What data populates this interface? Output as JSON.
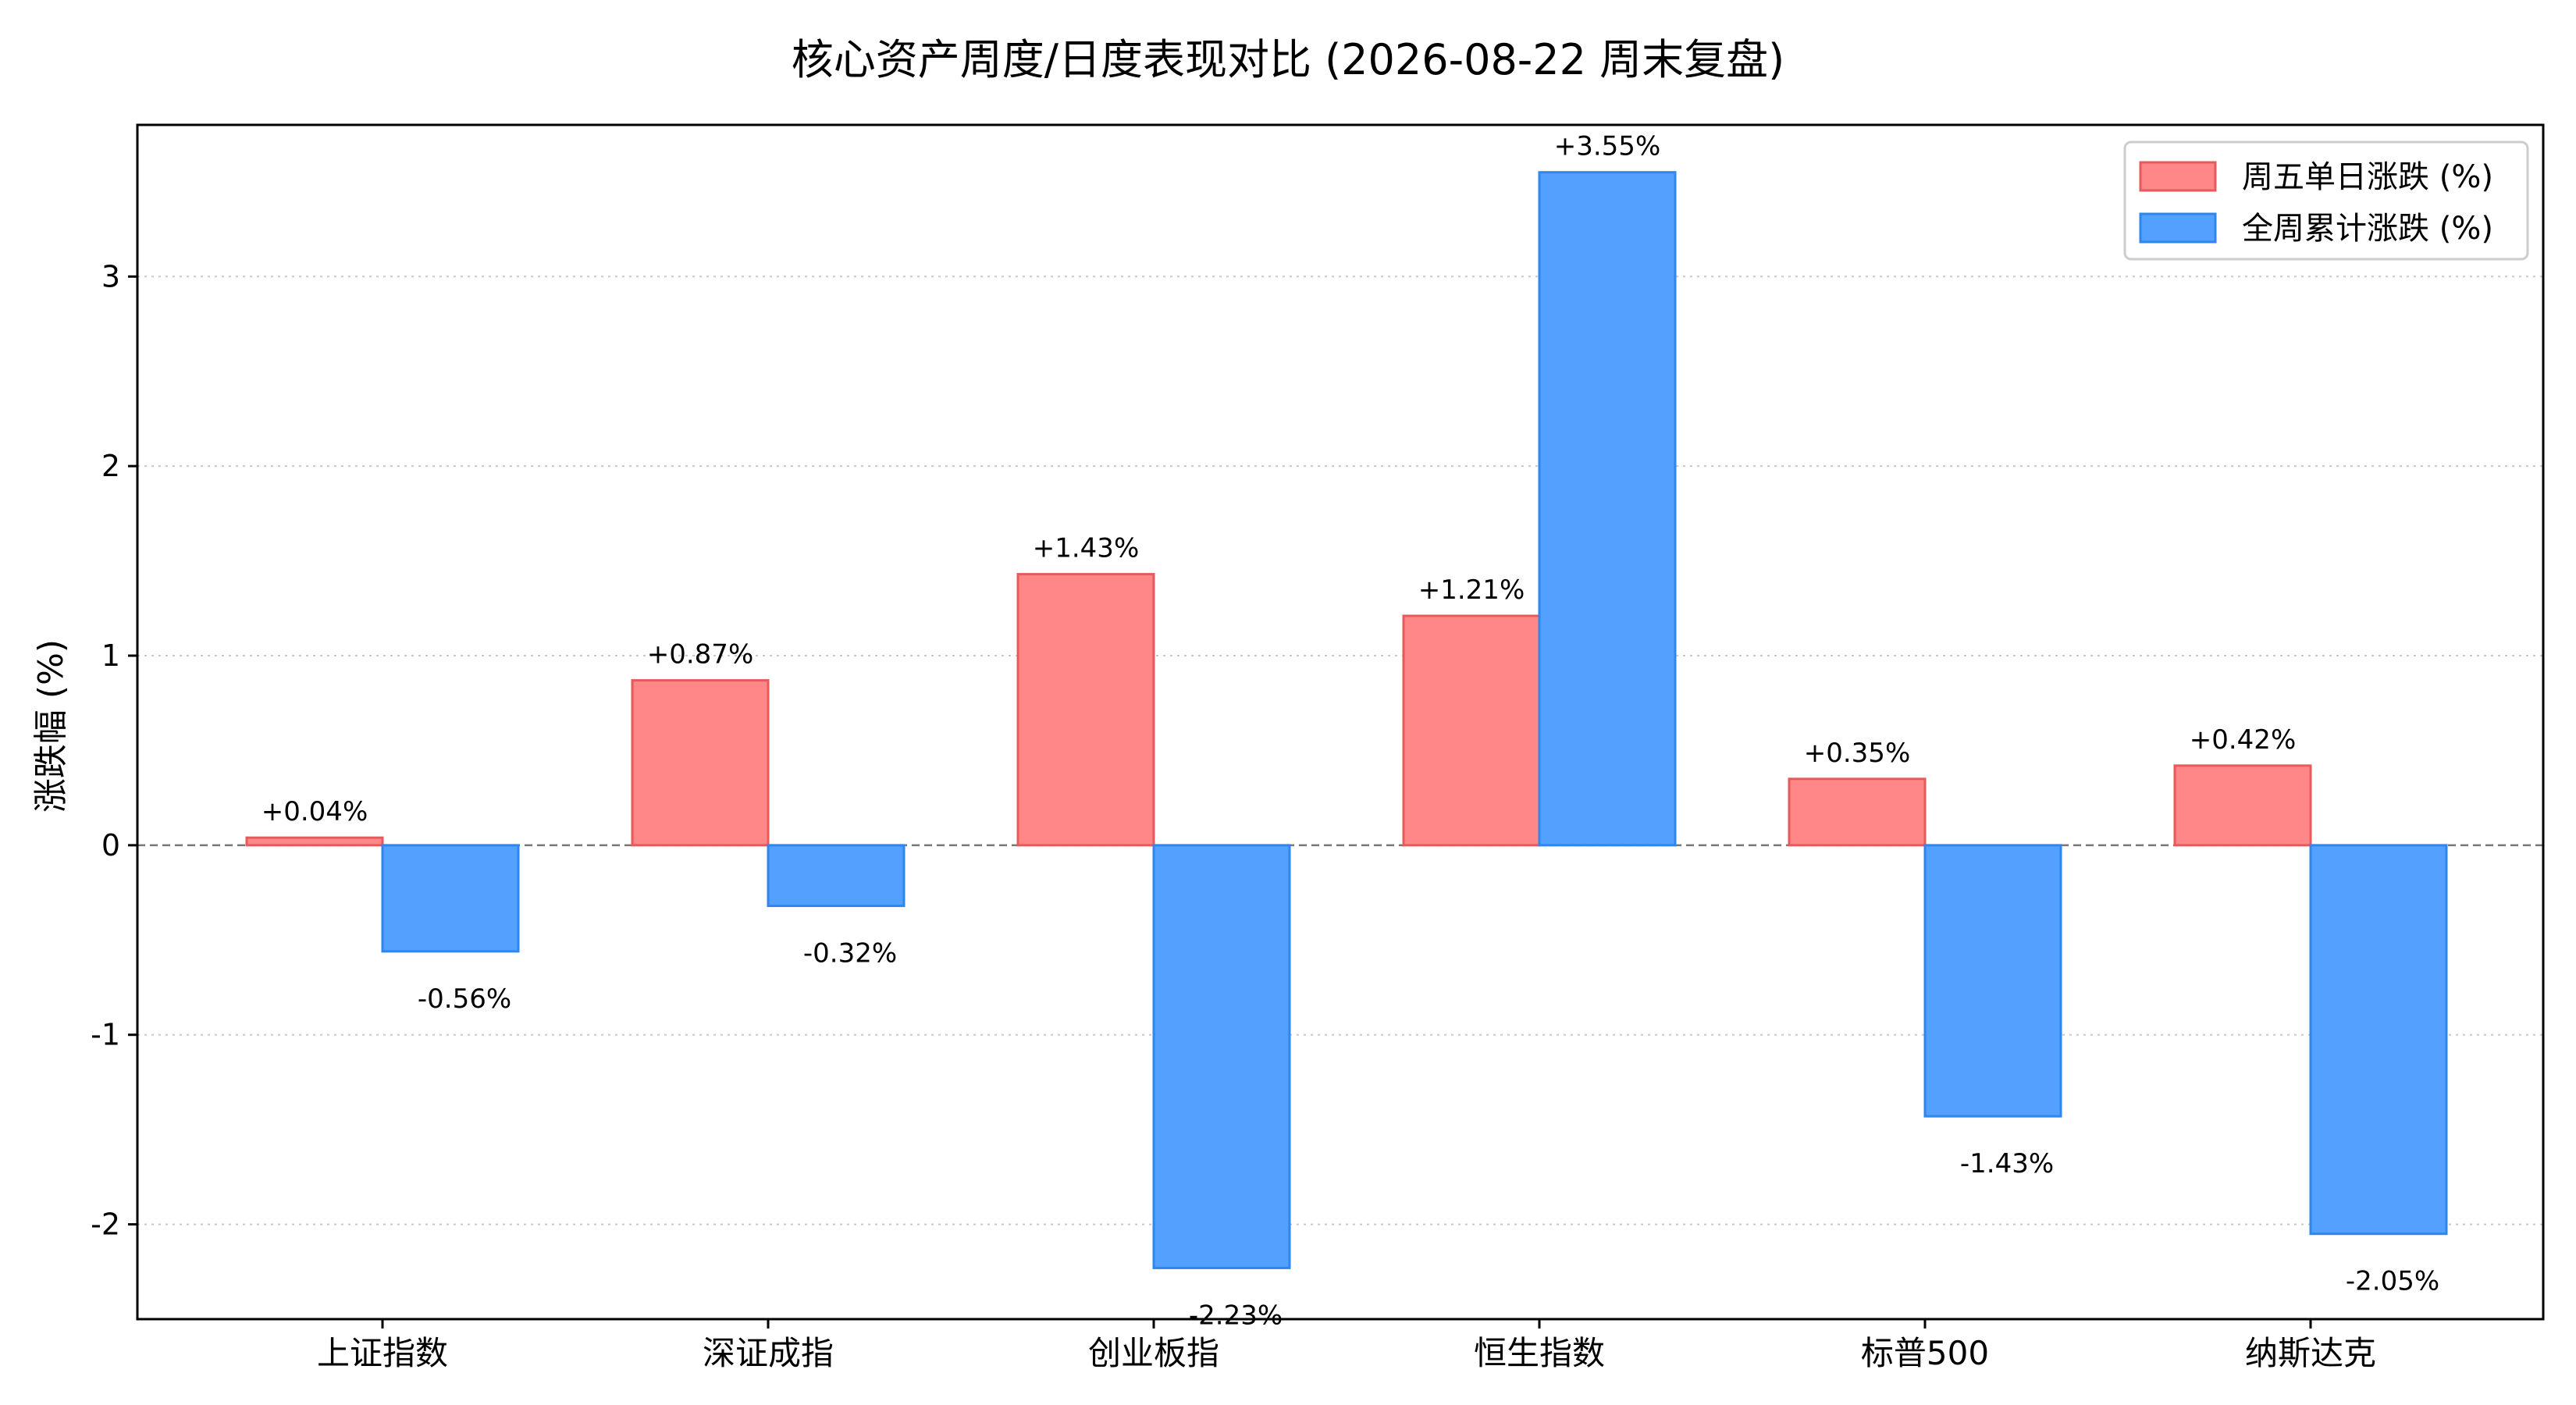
{
  "chart_data": {
    "type": "bar",
    "title": "核心资产周度/日度表现对比 (2026-08-22 周末复盘)",
    "xlabel": "",
    "ylabel": "涨跌幅 (%)",
    "ylim": [
      -2.5,
      3.8
    ],
    "yticks": [
      -2,
      -1,
      0,
      1,
      2,
      3
    ],
    "grid": "horizontal-dotted",
    "legend_position": "top-right",
    "categories": [
      "上证指数",
      "深证成指",
      "创业板指",
      "恒生指数",
      "标普500",
      "纳斯达克"
    ],
    "series": [
      {
        "name": "周五单日涨跌 (%)",
        "color": "#ff8787",
        "edge": "#e65a5a",
        "values": [
          0.04,
          0.87,
          1.43,
          1.21,
          0.35,
          0.42
        ],
        "labels": [
          "+0.04%",
          "+0.87%",
          "+1.43%",
          "+1.21%",
          "+0.35%",
          "+0.42%"
        ]
      },
      {
        "name": "全周累计涨跌 (%)",
        "color": "#54a0ff",
        "edge": "#2e86f0",
        "values": [
          -0.56,
          -0.32,
          -2.23,
          3.55,
          -1.43,
          -2.05
        ],
        "labels": [
          "-0.56%",
          "-0.32%",
          "-2.23%",
          "+3.55%",
          "-1.43%",
          "-2.05%"
        ]
      }
    ]
  }
}
